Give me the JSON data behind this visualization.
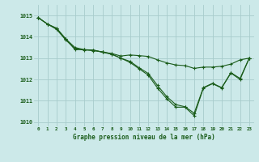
{
  "title": "Graphe pression niveau de la mer (hPa)",
  "bg_color": "#cce9e9",
  "line_color": "#1a5c1a",
  "grid_color": "#a8cccc",
  "tick_color": "#1a5c1a",
  "xlim": [
    -0.5,
    23.5
  ],
  "ylim": [
    1009.8,
    1015.5
  ],
  "yticks": [
    1010,
    1011,
    1012,
    1013,
    1014,
    1015
  ],
  "xticks": [
    0,
    1,
    2,
    3,
    4,
    5,
    6,
    7,
    8,
    9,
    10,
    11,
    12,
    13,
    14,
    15,
    16,
    17,
    18,
    19,
    20,
    21,
    22,
    23
  ],
  "series1": [
    1014.9,
    1014.6,
    1014.4,
    1013.9,
    1013.5,
    1013.4,
    1013.35,
    1013.3,
    1013.2,
    1013.0,
    1012.8,
    1012.5,
    1012.2,
    1011.6,
    1011.1,
    1010.7,
    1010.7,
    1010.3,
    1011.6,
    1011.8,
    1011.6,
    1012.3,
    1012.0,
    1013.0
  ],
  "series2": [
    1014.9,
    1014.6,
    1014.35,
    1013.85,
    1013.45,
    1013.38,
    1013.38,
    1013.28,
    1013.18,
    1013.0,
    1012.85,
    1012.55,
    1012.28,
    1011.72,
    1011.2,
    1010.82,
    1010.72,
    1010.42,
    1011.62,
    1011.82,
    1011.62,
    1012.32,
    1012.05,
    1013.0
  ],
  "series3": [
    1014.9,
    1014.6,
    1014.4,
    1013.9,
    1013.4,
    1013.4,
    1013.38,
    1013.28,
    1013.22,
    1013.1,
    1013.15,
    1013.12,
    1013.08,
    1012.92,
    1012.78,
    1012.68,
    1012.65,
    1012.52,
    1012.58,
    1012.58,
    1012.62,
    1012.72,
    1012.92,
    1013.0
  ]
}
